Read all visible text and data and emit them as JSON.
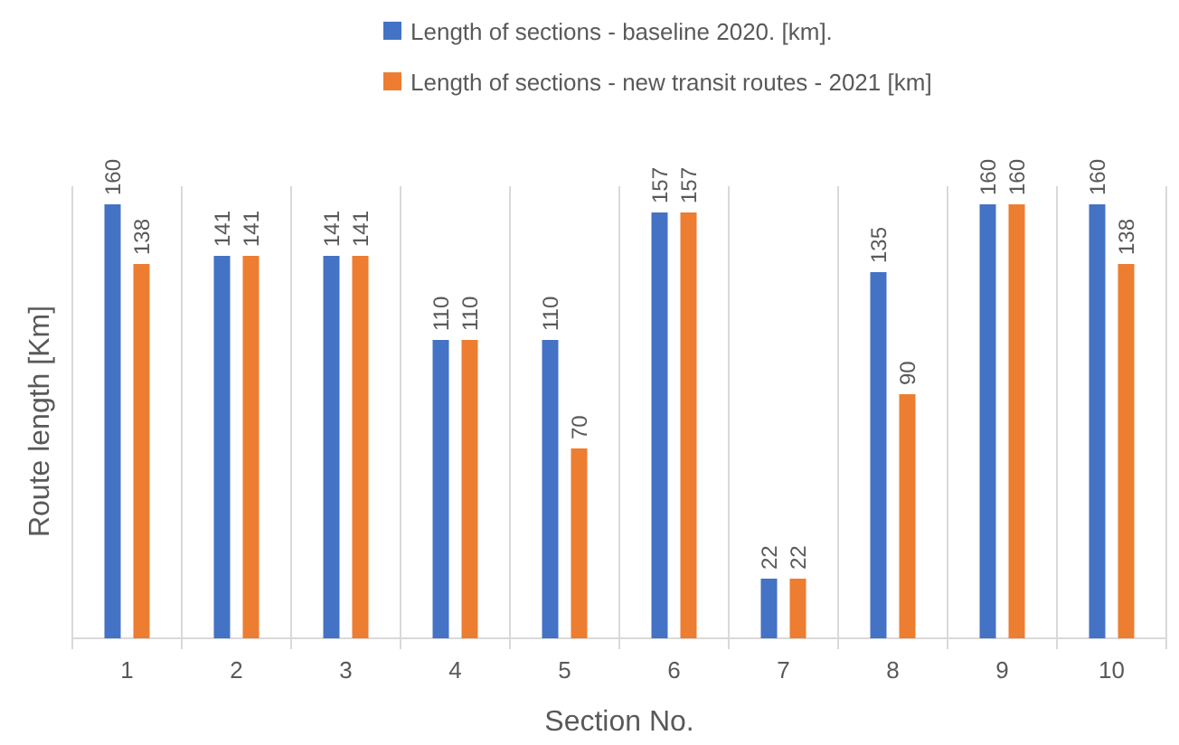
{
  "chart_data": {
    "type": "bar",
    "xlabel": "Section No.",
    "ylabel": "Route length [Km]",
    "categories": [
      "1",
      "2",
      "3",
      "4",
      "5",
      "6",
      "7",
      "8",
      "9",
      "10"
    ],
    "series": [
      {
        "name": "Length of sections - baseline 2020. [km].",
        "color": "#4472c4",
        "values": [
          160,
          141,
          141,
          110,
          110,
          157,
          22,
          135,
          160,
          160
        ]
      },
      {
        "name": "Length of sections - new transit routes - 2021 [km]",
        "color": "#ed7d31",
        "values": [
          138,
          141,
          141,
          110,
          70,
          157,
          22,
          90,
          160,
          138
        ]
      }
    ],
    "ylim": [
      0,
      160
    ],
    "data_labels": true,
    "grid": "x",
    "legend": "top",
    "tick_labels": "x"
  }
}
